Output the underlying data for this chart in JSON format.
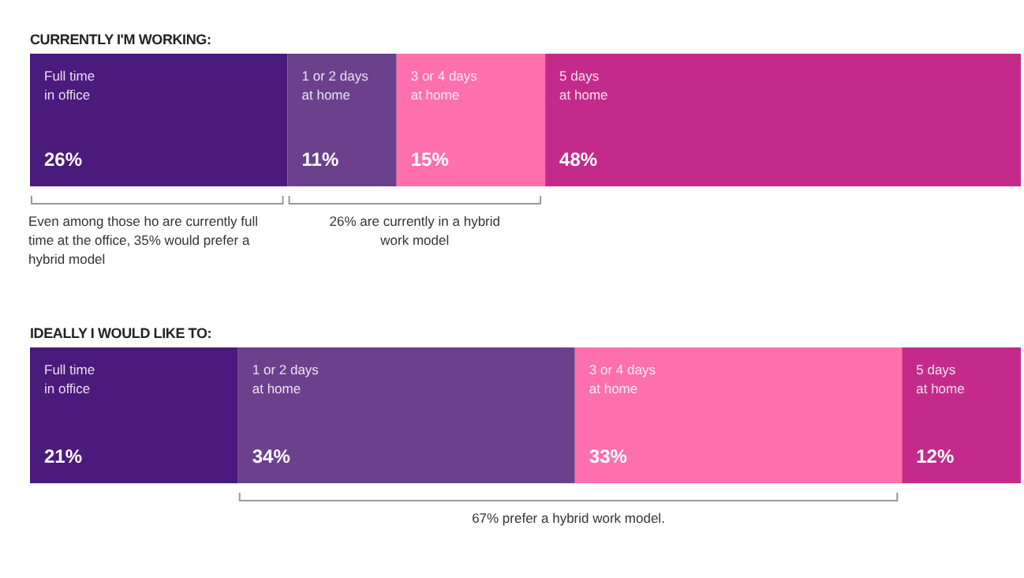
{
  "chart_data": [
    {
      "type": "bar",
      "title": "CURRENTLY I'M WORKING:",
      "orientation": "horizontal",
      "stacked": true,
      "categories": [
        null
      ],
      "xlim": [
        0,
        100
      ],
      "tick_labels": false,
      "series": [
        {
          "name": "Full time\nin office",
          "color": "#4a1a7c",
          "values": [
            26
          ],
          "value_labels": [
            "26%"
          ]
        },
        {
          "name": "1 or 2 days\nat home",
          "color": "#6b418e",
          "values": [
            11
          ],
          "value_labels": [
            "11%"
          ]
        },
        {
          "name": "3 or 4 days\nat home",
          "color": "#ff70ad",
          "values": [
            15
          ],
          "value_labels": [
            "15%"
          ]
        },
        {
          "name": "5 days\nat home",
          "color": "#c42a8a",
          "values": [
            48
          ],
          "value_labels": [
            "48%"
          ]
        }
      ],
      "annotations": [
        "Even among those ho are currently full time at the office, 35% would prefer a hybrid model",
        "26% are currently in a hybrid work model"
      ]
    },
    {
      "type": "bar",
      "title": "IDEALLY I WOULD LIKE TO:",
      "orientation": "horizontal",
      "stacked": true,
      "categories": [
        null
      ],
      "xlim": [
        0,
        100
      ],
      "tick_labels": false,
      "series": [
        {
          "name": "Full time\nin office",
          "color": "#4a1a7c",
          "values": [
            21
          ],
          "value_labels": [
            "21%"
          ]
        },
        {
          "name": "1 or 2 days\nat home",
          "color": "#6b418e",
          "values": [
            34
          ],
          "value_labels": [
            "34%"
          ]
        },
        {
          "name": "3 or 4 days\nat home",
          "color": "#ff70ad",
          "values": [
            33
          ],
          "value_labels": [
            "33%"
          ]
        },
        {
          "name": "5 days\nat home",
          "color": "#c42a8a",
          "values": [
            12
          ],
          "value_labels": [
            "12%"
          ]
        }
      ],
      "annotations": [
        "67% prefer a hybrid work model."
      ]
    }
  ]
}
